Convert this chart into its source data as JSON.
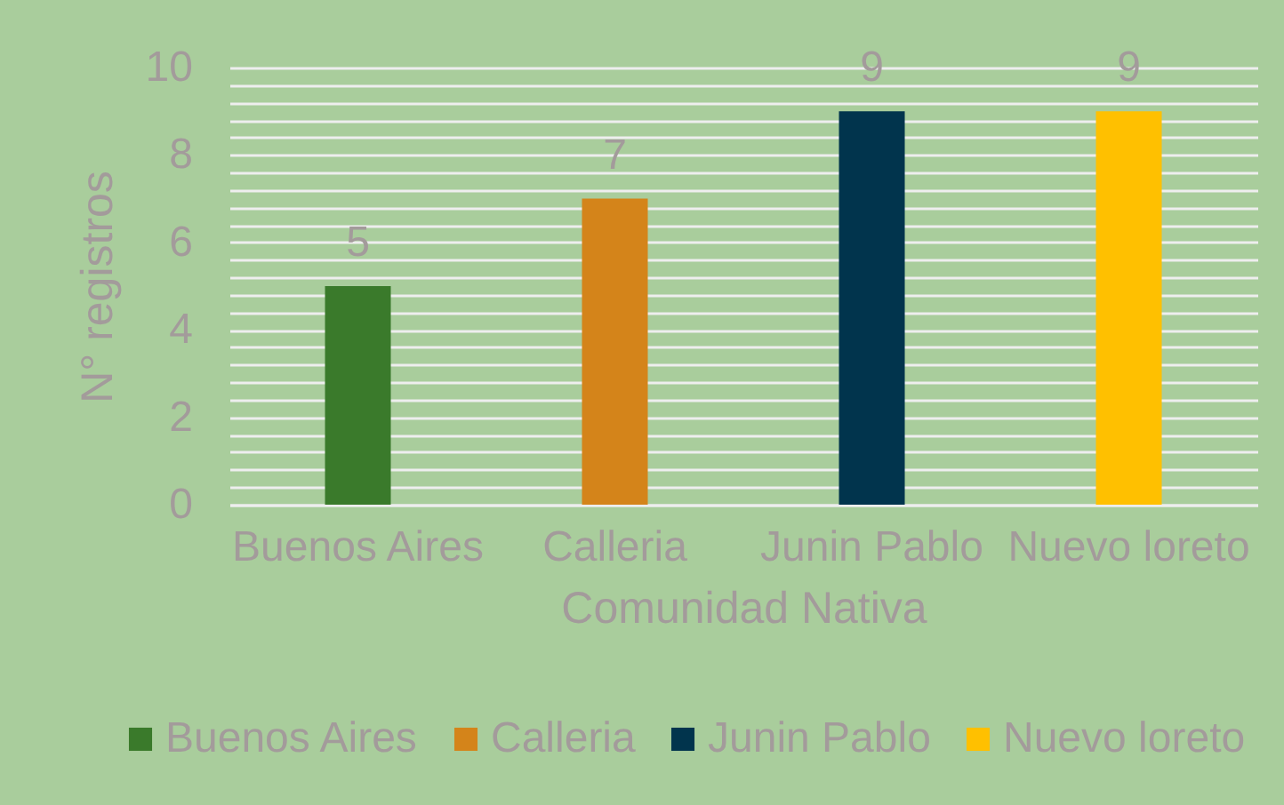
{
  "chart_data": {
    "type": "bar",
    "categories": [
      "Buenos Aires",
      "Calleria",
      "Junin Pablo",
      "Nuevo loreto"
    ],
    "series": [
      {
        "name": "Buenos Aires",
        "color": "#3a7a2b",
        "values": [
          5,
          null,
          null,
          null
        ]
      },
      {
        "name": "Calleria",
        "color": "#d4841a",
        "values": [
          null,
          7,
          null,
          null
        ]
      },
      {
        "name": "Junin Pablo",
        "color": "#01344d",
        "values": [
          null,
          null,
          9,
          null
        ]
      },
      {
        "name": "Nuevo loreto",
        "color": "#ffc000",
        "values": [
          null,
          null,
          null,
          9
        ]
      }
    ],
    "xlabel": "Comunidad Nativa",
    "ylabel": "N° registros",
    "ylim": [
      0,
      10
    ],
    "yticks": [
      0,
      {
        "value": 0.4,
        "label": null
      },
      {
        "value": 0.8,
        "label": null
      },
      {
        "value": 1.2,
        "label": null
      },
      {
        "value": 1.6,
        "label": null
      },
      2,
      {
        "value": 2.4,
        "label": null
      },
      {
        "value": 2.8,
        "label": null
      },
      {
        "value": 3.2,
        "label": null
      },
      {
        "value": 3.6,
        "label": null
      },
      4,
      {
        "value": 4.4,
        "label": null
      },
      {
        "value": 4.8,
        "label": null
      },
      {
        "value": 5.2,
        "label": null
      },
      {
        "value": 5.6,
        "label": null
      },
      6,
      {
        "value": 6.4,
        "label": null
      },
      {
        "value": 6.8,
        "label": null
      },
      {
        "value": 7.2,
        "label": null
      },
      {
        "value": 7.6,
        "label": null
      },
      8,
      {
        "value": 8.4,
        "label": null
      },
      {
        "value": 8.8,
        "label": null
      },
      {
        "value": 9.2,
        "label": null
      },
      {
        "value": 9.6,
        "label": null
      },
      10
    ],
    "grid": "y",
    "legend": "bottom",
    "data_labels": true
  }
}
